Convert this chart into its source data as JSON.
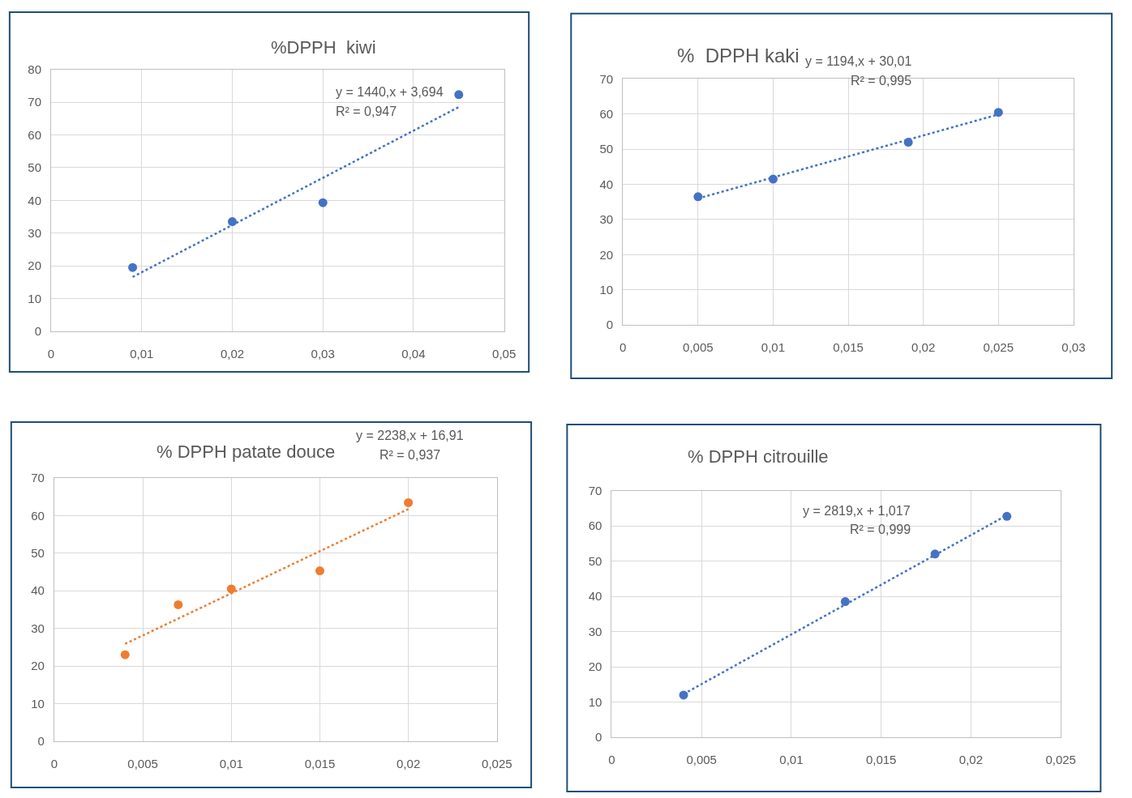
{
  "chart_data": [
    {
      "type": "scatter",
      "title": "%DPPH  kiwi",
      "annotations": [
        "y = 1440,x + 3,694",
        "R² = 0,947"
      ],
      "marker": "circle",
      "grid": true,
      "xlim": [
        0,
        0.05
      ],
      "xticks": [
        0,
        {
          "value": 0.01,
          "label": "0,01"
        },
        {
          "value": 0.02,
          "label": "0,02"
        },
        {
          "value": 0.03,
          "label": "0,03"
        },
        {
          "value": 0.04,
          "label": "0,04"
        },
        {
          "value": 0.05,
          "label": "0,05"
        }
      ],
      "ylim": [
        0,
        80
      ],
      "yticks": [
        0,
        10,
        20,
        30,
        40,
        50,
        60,
        70,
        80
      ],
      "series": [
        {
          "color": "#4472c4",
          "x": [
            0.009,
            0.02,
            0.03,
            0.045
          ],
          "values": [
            19.5,
            33.5,
            39.3,
            72.3
          ]
        },
        {
          "type": "line",
          "line_style": "dotted",
          "marker": "none",
          "color": "#4472c4",
          "x": [
            0.009,
            0.045
          ],
          "values": [
            16.6,
            68.5
          ]
        }
      ]
    },
    {
      "type": "scatter",
      "title": "%  DPPH kaki",
      "annotations": [
        "y = 1194,x + 30,01",
        "R² = 0,995"
      ],
      "marker": "circle",
      "grid": true,
      "xlim": [
        0,
        0.03
      ],
      "xticks": [
        0,
        {
          "value": 0.005,
          "label": "0,005"
        },
        {
          "value": 0.01,
          "label": "0,01"
        },
        {
          "value": 0.015,
          "label": "0,015"
        },
        {
          "value": 0.02,
          "label": "0,02"
        },
        {
          "value": 0.025,
          "label": "0,025"
        },
        {
          "value": 0.03,
          "label": "0,03"
        }
      ],
      "ylim": [
        0,
        70
      ],
      "yticks": [
        0,
        10,
        20,
        30,
        40,
        50,
        60,
        70
      ],
      "series": [
        {
          "color": "#4472c4",
          "x": [
            0.005,
            0.01,
            0.019,
            0.025
          ],
          "values": [
            36.5,
            41.5,
            52,
            60.5
          ]
        },
        {
          "type": "line",
          "line_style": "dotted",
          "marker": "none",
          "color": "#4472c4",
          "x": [
            0.005,
            0.025
          ],
          "values": [
            36,
            59.9
          ]
        }
      ]
    },
    {
      "type": "scatter",
      "title": "% DPPH patate douce",
      "annotations": [
        "y = 2238,x + 16,91",
        "R² = 0,937"
      ],
      "marker": "circle",
      "grid": true,
      "xlim": [
        0,
        0.025
      ],
      "xticks": [
        0,
        {
          "value": 0.005,
          "label": "0,005"
        },
        {
          "value": 0.01,
          "label": "0,01"
        },
        {
          "value": 0.015,
          "label": "0,015"
        },
        {
          "value": 0.02,
          "label": "0,02"
        },
        {
          "value": 0.025,
          "label": "0,025"
        }
      ],
      "ylim": [
        0,
        70
      ],
      "yticks": [
        0,
        10,
        20,
        30,
        40,
        50,
        60,
        70
      ],
      "series": [
        {
          "color": "#ed7d31",
          "x": [
            0.004,
            0.007,
            0.01,
            0.015,
            0.02
          ],
          "values": [
            23,
            36.3,
            40.5,
            45.3,
            63.4
          ]
        },
        {
          "type": "line",
          "line_style": "dotted",
          "marker": "none",
          "color": "#ed7d31",
          "x": [
            0.004,
            0.02
          ],
          "values": [
            25.9,
            61.7
          ]
        }
      ]
    },
    {
      "type": "scatter",
      "title": "% DPPH citrouille",
      "annotations": [
        "y = 2819,x + 1,017",
        "R² = 0,999"
      ],
      "marker": "circle",
      "grid": true,
      "xlim": [
        0,
        0.025
      ],
      "xticks": [
        0,
        {
          "value": 0.005,
          "label": "0,005"
        },
        {
          "value": 0.01,
          "label": "0,01"
        },
        {
          "value": 0.015,
          "label": "0,015"
        },
        {
          "value": 0.02,
          "label": "0,02"
        },
        {
          "value": 0.025,
          "label": "0,025"
        }
      ],
      "ylim": [
        0,
        70
      ],
      "yticks": [
        0,
        10,
        20,
        30,
        40,
        50,
        60,
        70
      ],
      "series": [
        {
          "color": "#4472c4",
          "x": [
            0.004,
            0.013,
            0.018,
            0.022
          ],
          "values": [
            12,
            38.5,
            52,
            62.7
          ]
        },
        {
          "type": "line",
          "line_style": "dotted",
          "marker": "none",
          "color": "#4472c4",
          "x": [
            0.004,
            0.022
          ],
          "values": [
            12.3,
            63
          ]
        }
      ]
    }
  ]
}
